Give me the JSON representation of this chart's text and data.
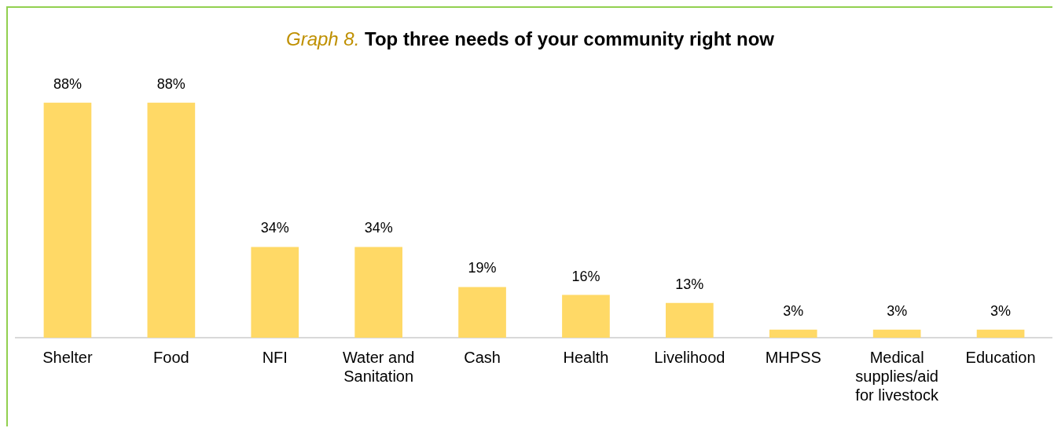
{
  "chart_data": {
    "type": "bar",
    "title": "Top three needs of your community right now",
    "annotations": [
      "Graph 8."
    ],
    "categories": [
      "Shelter",
      "Food",
      "NFI",
      "Water and Sanitation",
      "Cash",
      "Health",
      "Livelihood",
      "MHPSS",
      "Medical supplies/aid for livestock",
      "Education"
    ],
    "values": [
      88,
      88,
      34,
      34,
      19,
      16,
      13,
      3,
      3,
      3
    ],
    "value_labels": [
      "88%",
      "88%",
      "34%",
      "34%",
      "19%",
      "16%",
      "13%",
      "3%",
      "3%",
      "3%"
    ],
    "color": "#ffd966",
    "grid": false,
    "legend": false
  }
}
